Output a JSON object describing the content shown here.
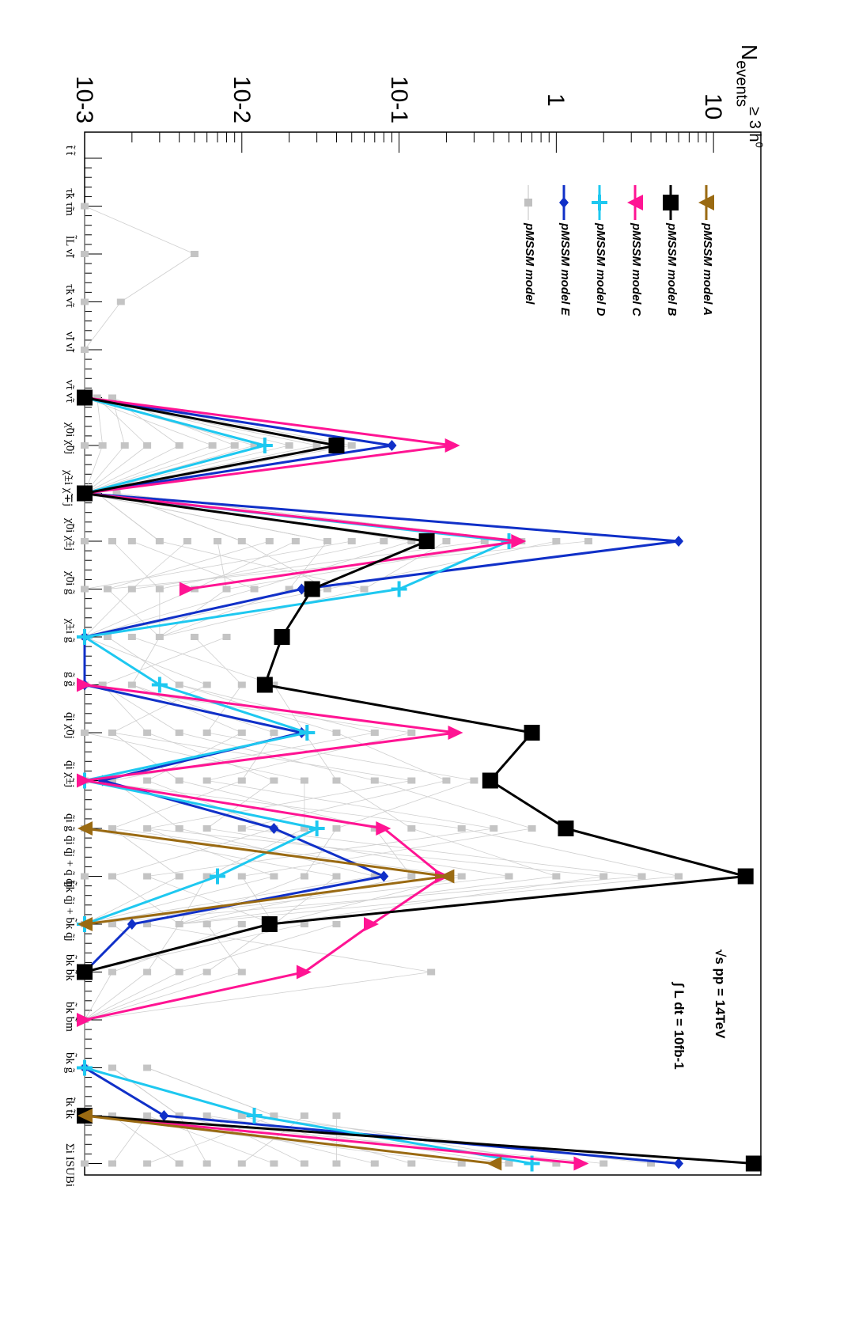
{
  "chart_data": {
    "type": "line",
    "orientation": "rotated 90 degrees clockwise",
    "y_scale": "log",
    "ylim": [
      0.001,
      20
    ],
    "y_ticks": [
      "10-3",
      "10-2",
      "10-1",
      "1",
      "10"
    ],
    "ylabel": "N events ≥ 3 h0",
    "energy_label": "√s pp = 14TeV",
    "lumi_label": "∫ L dt = 10fb-1",
    "categories": [
      "t̃ t̃",
      "τ̃k τ̃m",
      "l̃L ν̃l",
      "τ̃k ν̃τ",
      "ν̃l ν̃l",
      "ν̃τ ν̃τ",
      "χ̃0i χ̃0j",
      "χ̃±i χ̃∓j",
      "χ̃0i χ̃±j",
      "χ̃0i g̃",
      "χ̃±i g̃",
      "g̃ g̃",
      "q̃i χ̃0j",
      "q̃i χ̃±j",
      "q̃i g̃",
      "q̃i q̃j + q̃ q̃j",
      "b̃k q̃j + b̃k q̃j",
      "b̃k b̃k",
      "b̃k b̃m",
      "b̃k g̃",
      "t̃k t̃k",
      "Σi ISUBi"
    ],
    "legend": {
      "placement": "top-right",
      "entries": [
        {
          "label": "pMSSM model A",
          "color": "#9a6a12",
          "marker": "triangle"
        },
        {
          "label": "pMSSM model B",
          "color": "#000000",
          "marker": "square"
        },
        {
          "label": "pMSSM model C",
          "color": "#ff1493",
          "marker": "triangle"
        },
        {
          "label": "pMSSM model D",
          "color": "#1ec8f0",
          "marker": "cross"
        },
        {
          "label": "pMSSM model E",
          "color": "#1030c8",
          "marker": "diamond"
        },
        {
          "label": "pMSSM model",
          "color": "#c0c0c0",
          "marker": "square-small"
        }
      ]
    },
    "series": [
      {
        "name": "pMSSM model A",
        "color": "#9a6a12",
        "marker": "tri-up",
        "values": [
          null,
          null,
          null,
          null,
          null,
          null,
          null,
          null,
          null,
          null,
          null,
          null,
          null,
          null,
          0.001,
          0.2,
          0.001,
          null,
          null,
          null,
          0.001,
          0.4
        ]
      },
      {
        "name": "pMSSM model B",
        "color": "#000000",
        "marker": "square",
        "values": [
          null,
          null,
          null,
          null,
          null,
          0.001,
          0.04,
          0.001,
          0.15,
          0.028,
          0.018,
          0.014,
          0.7,
          0.38,
          1.15,
          16,
          0.015,
          0.001,
          null,
          null,
          0.001,
          18
        ]
      },
      {
        "name": "pMSSM model C",
        "color": "#ff1493",
        "marker": "tri-down",
        "values": [
          null,
          null,
          null,
          null,
          null,
          0.001,
          0.22,
          0.001,
          0.58,
          0.0045,
          null,
          0.001,
          0.23,
          0.001,
          0.08,
          0.19,
          0.067,
          0.025,
          0.001,
          null,
          0.001,
          1.45
        ]
      },
      {
        "name": "pMSSM model D",
        "color": "#1ec8f0",
        "marker": "cross",
        "values": [
          null,
          null,
          null,
          null,
          null,
          0.001,
          0.014,
          0.001,
          0.5,
          0.1,
          0.001,
          0.003,
          0.026,
          0.001,
          0.03,
          0.007,
          0.001,
          null,
          null,
          0.001,
          0.012,
          0.7
        ]
      },
      {
        "name": "pMSSM model E",
        "color": "#1030c8",
        "marker": "diamond",
        "values": [
          null,
          null,
          null,
          null,
          null,
          0.001,
          0.09,
          0.001,
          6,
          0.024,
          0.001,
          0.001,
          0.024,
          0.0013,
          0.016,
          0.08,
          0.002,
          0.001,
          null,
          0.001,
          0.0032,
          6
        ]
      }
    ],
    "background_points": [
      {
        "category": 1,
        "values": [
          0.001
        ]
      },
      {
        "category": 2,
        "values": [
          0.001,
          0.005
        ]
      },
      {
        "category": 3,
        "values": [
          0.001,
          0.0017
        ]
      },
      {
        "category": 4,
        "values": [
          0.001
        ]
      },
      {
        "category": 5,
        "values": [
          0.001,
          0.0012,
          0.0015
        ]
      },
      {
        "category": 6,
        "values": [
          0.001,
          0.0013,
          0.0018,
          0.0025,
          0.004,
          0.0065,
          0.009,
          0.012,
          0.02,
          0.03,
          0.05
        ]
      },
      {
        "category": 7,
        "values": [
          0.001,
          0.0012,
          0.0016
        ]
      },
      {
        "category": 8,
        "values": [
          0.001,
          0.0015,
          0.002,
          0.003,
          0.0045,
          0.007,
          0.01,
          0.015,
          0.022,
          0.035,
          0.05,
          0.08,
          0.12,
          0.2,
          0.35,
          0.6,
          1,
          1.6
        ]
      },
      {
        "category": 9,
        "values": [
          0.001,
          0.0014,
          0.002,
          0.003,
          0.005,
          0.008,
          0.012,
          0.02,
          0.035,
          0.06
        ]
      },
      {
        "category": 10,
        "values": [
          0.001,
          0.0014,
          0.002,
          0.003,
          0.005,
          0.008
        ]
      },
      {
        "category": 11,
        "values": [
          0.001,
          0.0013,
          0.002,
          0.004,
          0.006,
          0.01,
          0.016
        ]
      },
      {
        "category": 12,
        "values": [
          0.001,
          0.0015,
          0.0025,
          0.004,
          0.006,
          0.01,
          0.016,
          0.025,
          0.04,
          0.07,
          0.12
        ]
      },
      {
        "category": 13,
        "values": [
          0.001,
          0.0015,
          0.0025,
          0.004,
          0.006,
          0.01,
          0.016,
          0.025,
          0.04,
          0.07,
          0.12,
          0.2,
          0.3
        ]
      },
      {
        "category": 14,
        "values": [
          0.001,
          0.0015,
          0.0025,
          0.004,
          0.006,
          0.01,
          0.016,
          0.025,
          0.04,
          0.07,
          0.12,
          0.25,
          0.4,
          0.7
        ]
      },
      {
        "category": 15,
        "values": [
          0.001,
          0.0015,
          0.0025,
          0.004,
          0.006,
          0.01,
          0.016,
          0.025,
          0.04,
          0.07,
          0.12,
          0.25,
          0.5,
          1,
          2,
          3.5,
          6
        ]
      },
      {
        "category": 16,
        "values": [
          0.001,
          0.0015,
          0.0025,
          0.004,
          0.006,
          0.01,
          0.016,
          0.025,
          0.04
        ]
      },
      {
        "category": 17,
        "values": [
          0.001,
          0.0015,
          0.0025,
          0.004,
          0.006,
          0.01,
          0.16
        ]
      },
      {
        "category": 18,
        "values": [
          0.001
        ]
      },
      {
        "category": 19,
        "values": [
          0.001,
          0.0015,
          0.0025
        ]
      },
      {
        "category": 20,
        "values": [
          0.001,
          0.0015,
          0.0025,
          0.004,
          0.006,
          0.01,
          0.016,
          0.025,
          0.04
        ]
      },
      {
        "category": 21,
        "values": [
          0.001,
          0.0015,
          0.0025,
          0.004,
          0.006,
          0.01,
          0.016,
          0.025,
          0.04,
          0.07,
          0.12,
          0.25,
          0.5,
          1,
          2,
          4
        ]
      }
    ]
  }
}
